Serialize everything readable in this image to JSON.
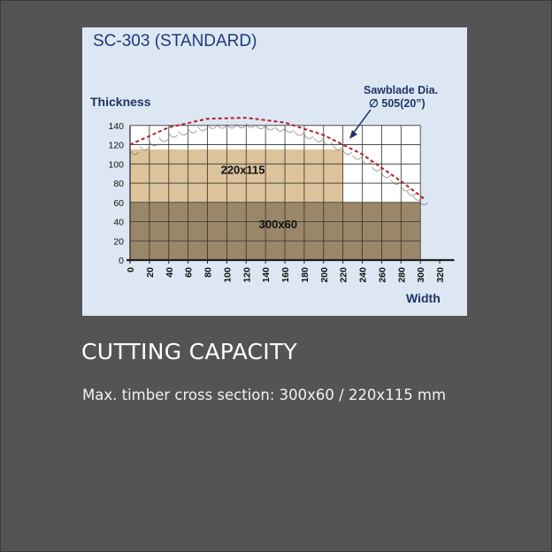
{
  "colors": {
    "background": "#545454",
    "chart_bg": "#dde7f3",
    "plot_bg": "#ffffff",
    "grid": "#333333",
    "title_blue": "#1d3a78",
    "label_navy": "#1f3466",
    "region_large": "#dcc39c",
    "region_small": "#9a8668",
    "arc": "#b22222"
  },
  "chart_data": {
    "type": "area",
    "title": "SC-303 (STANDARD)",
    "ylabel": "Thickness",
    "xlabel": "Width",
    "annotation_line1": "Sawblade Dia.",
    "annotation_line2": "∅ 505(20”)",
    "xlim": [
      0,
      320
    ],
    "ylim": [
      0,
      140
    ],
    "x_ticks": [
      0,
      20,
      40,
      60,
      80,
      100,
      120,
      140,
      160,
      180,
      200,
      220,
      240,
      260,
      280,
      300,
      320
    ],
    "y_ticks": [
      0,
      20,
      40,
      60,
      80,
      100,
      120,
      140
    ],
    "grid": true,
    "regions": [
      {
        "label": "300x60",
        "width": 300,
        "height": 60
      },
      {
        "label": "220x115",
        "width": 220,
        "height": 115
      }
    ],
    "arc_points": [
      [
        0,
        120
      ],
      [
        40,
        138
      ],
      [
        80,
        147
      ],
      [
        120,
        148
      ],
      [
        160,
        143
      ],
      [
        200,
        130
      ],
      [
        240,
        110
      ],
      [
        280,
        82
      ],
      [
        305,
        63
      ]
    ]
  },
  "caption": {
    "title": "CUTTING CAPACITY",
    "text": "Max. timber cross section: 300x60 / 220x115 mm"
  }
}
